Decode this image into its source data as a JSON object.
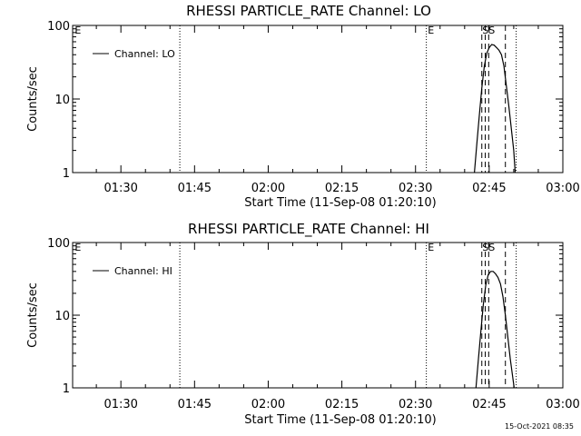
{
  "footer": {
    "timestamp": "15-Oct-2021 08:35"
  },
  "chart_data": [
    {
      "type": "line",
      "title": "RHESSI PARTICLE_RATE Channel: LO",
      "xlabel": "Start Time (11-Sep-08 01:20:10)",
      "ylabel": "Counts/sec",
      "xscale": "time-minutes",
      "yscale": "log",
      "xlim_minutes": [
        80.17,
        180.0
      ],
      "ylim": [
        1,
        100
      ],
      "x_tick_labels": [
        "01:30",
        "01:45",
        "02:00",
        "02:15",
        "02:30",
        "02:45",
        "03:00"
      ],
      "x_tick_minutes": [
        90,
        105,
        120,
        135,
        150,
        165,
        180
      ],
      "y_tick_labels": [
        "1",
        "10",
        "100"
      ],
      "y_tick_values": [
        1,
        10,
        100
      ],
      "legend": {
        "position": "top-left",
        "label": "Channel: LO"
      },
      "dotted_lines_minutes": [
        102.0,
        152.2,
        170.5
      ],
      "dashed_lines_minutes": [
        163.5,
        164.2,
        164.9,
        168.3
      ],
      "markers": [
        {
          "text": "E",
          "minute": 80.6
        },
        {
          "text": "E",
          "minute": 152.5
        },
        {
          "text": "SS",
          "minute": 163.6
        }
      ],
      "series": [
        {
          "name": "Channel: LO",
          "x_minutes": [
            162.0,
            162.5,
            163.0,
            163.5,
            164.0,
            164.5,
            165.0,
            165.5,
            166.0,
            166.5,
            167.0,
            167.5,
            168.0,
            168.5,
            169.0,
            169.5,
            170.0,
            170.3
          ],
          "values": [
            1.0,
            2.5,
            6.0,
            14,
            28,
            42,
            50,
            55,
            54,
            50,
            46,
            40,
            28,
            15,
            8,
            4,
            2,
            1.0
          ]
        }
      ]
    },
    {
      "type": "line",
      "title": "RHESSI PARTICLE_RATE Channel: HI",
      "xlabel": "Start Time (11-Sep-08 01:20:10)",
      "ylabel": "Counts/sec",
      "xscale": "time-minutes",
      "yscale": "log",
      "xlim_minutes": [
        80.17,
        180.0
      ],
      "ylim": [
        1,
        100
      ],
      "x_tick_labels": [
        "01:30",
        "01:45",
        "02:00",
        "02:15",
        "02:30",
        "02:45",
        "03:00"
      ],
      "x_tick_minutes": [
        90,
        105,
        120,
        135,
        150,
        165,
        180
      ],
      "y_tick_labels": [
        "1",
        "10",
        "100"
      ],
      "y_tick_values": [
        1,
        10,
        100
      ],
      "legend": {
        "position": "top-left",
        "label": "Channel: HI"
      },
      "dotted_lines_minutes": [
        102.0,
        152.2,
        170.5
      ],
      "dashed_lines_minutes": [
        163.5,
        164.2,
        164.9,
        168.3
      ],
      "markers": [
        {
          "text": "E",
          "minute": 80.6
        },
        {
          "text": "E",
          "minute": 152.5
        },
        {
          "text": "SS",
          "minute": 163.6
        }
      ],
      "series": [
        {
          "name": "Channel: HI",
          "x_minutes": [
            162.3,
            162.8,
            163.3,
            163.8,
            164.3,
            164.8,
            165.3,
            165.8,
            166.3,
            166.8,
            167.3,
            167.8,
            168.3,
            168.8,
            169.3,
            169.8,
            170.1
          ],
          "values": [
            1.0,
            2.5,
            6.0,
            14,
            26,
            36,
            40,
            40,
            37,
            33,
            27,
            18,
            10,
            5,
            2.5,
            1.4,
            1.0
          ]
        }
      ]
    }
  ]
}
